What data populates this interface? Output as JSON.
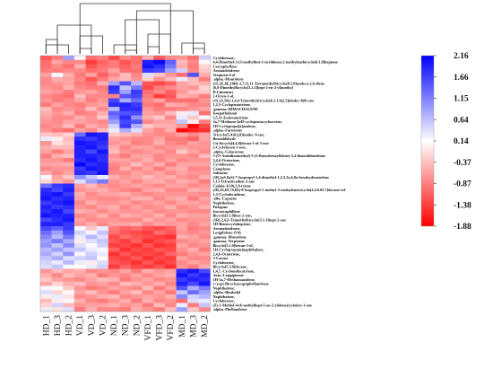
{
  "chart_data": {
    "type": "heatmap",
    "title": "",
    "xlabel": "",
    "ylabel": "",
    "columns": [
      "HD_1",
      "HD_3",
      "HD_2",
      "VD_1",
      "VD_3",
      "VD_2",
      "ND_1",
      "ND_3",
      "ND_2",
      "VFD_1",
      "VFD_3",
      "VFD_2",
      "MD_1",
      "MD_3",
      "MD_2"
    ],
    "rows": [
      "Cyclohexane,",
      "4,4-Dimethyl-3-(3-methylbut-3-enylidene)-2-methylenebicyclo[4.1.0]heptane",
      "Caryophyllene",
      "Aromadendrene",
      "Terpinen-4-ol",
      ".alpha.-Muurolene",
      "(1S,2E,6E,10R)-3,7,11,11-Tetramethylbicyclo[8.1.0]undeca-2,6-diene",
      "(6,6-Dimethylbicyclo[3.1.1]hept-2-en-2-yl)methyl",
      "D-Limonene",
      "2-Octen-1-ol,",
      "(1S,2S,5R)-1,4,4-Trimethyltricyclo[6.3.1.0(2,5)]dodec-8(9)-ene",
      "1,2,5-Cyclopentatriene,",
      ".gamma.-HIMACHALENE",
      "Isospathulenol",
      "3,5,11-Eudesmatriene",
      "3a,7-Methano-3aH-cyclopentacyclooctene,",
      "1H-Cyclopropa[a]azulene,",
      ".alpha.-Farnesene",
      "Tricyclo[5.4.0(2,8)]undec-9-ene,",
      "Benzaldehyde",
      "Cis-bicyclo[4.4.0]decan-1-ol-3-one",
      "2-Cyclohexen-1-one,",
      ".alpha.-Calacorene",
      "3-(O-Anisidinomethyl)-5-(3-fluorobenzylidene)-2,4-thiazolidinedione",
      "2,4,6-Octatriene,",
      "Cyclohexane,",
      "Camphene",
      "Sabinene",
      "(1R,2aS,8aS)-7-Isopropyl-1,4-dimethyl-1,2,3,3a,6,8a-hexahydroazulene",
      "1,13-Tetradecadien-3-one",
      "Cadala-1(10),3,8-triene",
      "(1R,2S,6S,7S,8S)-8-Isopropyl-1-methyl-3-methylenetricyclo[4.4.0.02.7]decane-rel-",
      "1,3-Cyclodecadiene,",
      ".alfa.-Copaene",
      "Naphthalene,",
      "Pulegone",
      "Isocaryophillene",
      "Bicyclo[3.1.0]hex-2-ene,",
      "(1R)-2,6,6-Trimethylbicyclo[3.1.1]hept-2-ene",
      "1H-Benzocycloheptene,",
      "Aromadendrene,",
      "Longifolene-(V4)",
      ".gamma.-Muurolene",
      ".gamma.-Terpinene",
      "Bicyclo[3.1.0]hexan-3-ol,",
      "1H-Cyclopropa[a]naphthalene,",
      "2,4,6-Octatriene,",
      "3-Carene",
      "Cyclohexene,",
      "Bicyclo[5.3.0]decane,",
      "1,4,7,-Cycloundecatriene,",
      ".beta.-Longipinene",
      "1H-3a,7-Methanoazulene,",
      "(+)-epi-Bicyclosesquiphellandrene",
      "Naphthalene,",
      ".alpha.-Bisabolol",
      "Naphthalene,",
      "Cyclohexene,",
      "(Z)-1-Methyl-4-(6-methylhept-5-en-2-ylidene)cyclohex-1-ene",
      ".alpha.-Phellandrene"
    ],
    "values": [
      [
        -1.2,
        -0.9,
        0.9,
        0.1,
        -1.0,
        -0.9,
        -1.3,
        -0.8,
        -1.0,
        -0.5,
        -1.2,
        -0.8,
        -0.7,
        -1.0,
        0.5
      ],
      [
        -1.0,
        -0.6,
        -0.8,
        -0.8,
        -1.4,
        -1.1,
        -0.9,
        -1.2,
        -1.0,
        1.9,
        2.1,
        1.4,
        -0.4,
        -0.8,
        0.1
      ],
      [
        -1.0,
        -0.8,
        -1.0,
        -0.5,
        -1.2,
        -1.0,
        -0.9,
        -1.1,
        -0.9,
        2.0,
        1.8,
        1.2,
        -0.5,
        -0.9,
        -0.2
      ],
      [
        -0.9,
        -0.9,
        -0.8,
        -0.8,
        -1.0,
        -0.9,
        -0.6,
        -1.0,
        -1.0,
        1.7,
        1.6,
        0.9,
        0.5,
        -0.8,
        -0.3
      ],
      [
        -0.6,
        0.2,
        -0.5,
        -0.9,
        -0.6,
        -1.1,
        -0.8,
        -0.4,
        -0.8,
        0.4,
        -0.3,
        -0.7,
        -1.0,
        1.5,
        -0.5
      ],
      [
        -0.8,
        -0.5,
        -0.6,
        -0.8,
        -1.2,
        -0.9,
        -0.6,
        -0.4,
        -0.7,
        -0.2,
        -0.7,
        -0.4,
        0.3,
        -0.4,
        -0.9
      ],
      [
        -0.8,
        -0.7,
        -0.6,
        -0.9,
        -1.0,
        -0.5,
        0.9,
        1.5,
        0.7,
        -1.2,
        -1.3,
        -1.1,
        -0.6,
        -0.4,
        -0.5
      ],
      [
        -0.7,
        -0.8,
        -0.5,
        -0.8,
        -0.9,
        -0.9,
        1.8,
        0.6,
        1.2,
        -1.3,
        -0.9,
        -0.8,
        -0.6,
        -0.7,
        -0.2
      ],
      [
        -0.6,
        -0.7,
        -0.9,
        -0.7,
        -0.6,
        -0.8,
        1.7,
        0.9,
        1.7,
        -1.0,
        -0.8,
        -1.1,
        -0.7,
        -0.4,
        -0.3
      ],
      [
        -0.8,
        -0.9,
        -1.0,
        -0.4,
        -0.8,
        -0.8,
        -0.8,
        1.5,
        1.6,
        -0.9,
        -1.4,
        -1.2,
        -0.5,
        -0.6,
        -0.9
      ],
      [
        -0.7,
        -0.9,
        -0.8,
        -0.6,
        -0.9,
        -0.7,
        1.6,
        0.8,
        1.3,
        -0.8,
        -0.6,
        -1.0,
        -1.0,
        -1.0,
        -0.7
      ],
      [
        -0.9,
        -0.6,
        -0.8,
        -0.9,
        -0.7,
        -0.6,
        1.8,
        1.9,
        1.7,
        -0.9,
        -1.0,
        -0.5,
        -0.6,
        -0.8,
        -0.8
      ],
      [
        -0.4,
        -0.8,
        -0.7,
        -0.8,
        -0.4,
        -0.8,
        0.7,
        1.8,
        1.8,
        -0.7,
        -0.9,
        -0.9,
        -0.8,
        -0.7,
        -0.6
      ],
      [
        -0.5,
        -0.7,
        -0.5,
        -0.9,
        -0.8,
        -0.5,
        1.4,
        1.5,
        1.6,
        -0.6,
        -0.7,
        -0.4,
        0.0,
        0.3,
        -1.0
      ],
      [
        -0.6,
        -0.8,
        -0.8,
        -0.5,
        -0.7,
        -0.3,
        1.2,
        1.8,
        1.0,
        -0.5,
        -0.3,
        -0.8,
        0.3,
        -0.3,
        0.2
      ],
      [
        -0.7,
        -0.8,
        -0.6,
        -0.6,
        -0.7,
        -0.8,
        0.9,
        1.6,
        1.5,
        -0.8,
        -0.6,
        -0.6,
        0.6,
        0.0,
        -0.9
      ],
      [
        -0.8,
        -0.7,
        -0.4,
        -0.9,
        -0.5,
        -0.7,
        0.5,
        1.7,
        0.8,
        -0.3,
        -0.5,
        -0.5,
        -0.7,
        -1.8,
        -1.3
      ],
      [
        -0.7,
        -0.9,
        -1.0,
        -0.6,
        -0.8,
        -0.4,
        0.3,
        0.8,
        0.4,
        -0.6,
        -0.8,
        -0.5,
        -1.8,
        -1.6,
        -1.5
      ],
      [
        -0.3,
        -0.4,
        -0.2,
        1.3,
        2.0,
        1.9,
        -0.3,
        -0.4,
        -0.5,
        -0.7,
        -0.8,
        -0.8,
        -0.6,
        -0.8,
        -0.6
      ],
      [
        0.3,
        0.0,
        -0.4,
        1.8,
        1.7,
        1.9,
        -0.6,
        -0.7,
        -0.8,
        -0.8,
        -0.6,
        -0.9,
        -0.9,
        -1.1,
        -0.6
      ],
      [
        -0.7,
        -0.1,
        -0.3,
        2.0,
        1.9,
        1.8,
        -0.7,
        -0.6,
        -0.9,
        -0.8,
        -0.5,
        -0.8,
        -0.9,
        -0.6,
        -0.7
      ],
      [
        -0.5,
        -0.4,
        -0.4,
        1.9,
        2.0,
        1.7,
        -0.5,
        -0.8,
        -0.6,
        -0.6,
        -0.8,
        -0.7,
        -0.6,
        -0.7,
        -0.7
      ],
      [
        -0.6,
        -0.9,
        -0.6,
        1.9,
        1.6,
        2.0,
        -0.4,
        -0.7,
        -0.8,
        -0.7,
        -0.6,
        -0.8,
        -0.3,
        -0.6,
        -0.8
      ],
      [
        -0.9,
        -0.5,
        -0.4,
        1.9,
        1.9,
        1.8,
        -0.7,
        -0.9,
        -0.6,
        -0.6,
        -0.8,
        -0.7,
        -0.7,
        -0.8,
        -0.4
      ],
      [
        -0.7,
        -0.7,
        -0.9,
        1.8,
        2.0,
        1.8,
        -0.6,
        -0.6,
        -0.7,
        -0.5,
        -0.8,
        -0.6,
        -0.8,
        -0.7,
        -0.7
      ],
      [
        -0.6,
        -0.6,
        -0.5,
        2.1,
        1.8,
        1.9,
        -0.8,
        -0.7,
        -0.4,
        -0.7,
        -0.5,
        -0.9,
        -0.6,
        -0.6,
        -0.6
      ],
      [
        -0.8,
        -0.7,
        -0.7,
        1.7,
        2.0,
        1.9,
        -0.9,
        -0.5,
        -0.8,
        -0.6,
        -0.9,
        -0.6,
        -0.5,
        -0.8,
        -0.8
      ],
      [
        -0.5,
        -0.8,
        -0.6,
        1.8,
        1.7,
        2.0,
        -0.8,
        -0.8,
        -0.6,
        -0.7,
        -0.6,
        -0.8,
        -0.6,
        -0.7,
        -0.7
      ],
      [
        0.2,
        -0.6,
        -0.3,
        1.0,
        0.6,
        0.3,
        -0.5,
        -0.7,
        -0.6,
        -0.4,
        -0.6,
        -0.5,
        -0.7,
        -0.8,
        -0.5
      ],
      [
        -0.2,
        -0.5,
        -0.7,
        0.4,
        0.9,
        1.2,
        -0.7,
        -0.6,
        -0.8,
        -0.6,
        -0.5,
        -0.7,
        -0.5,
        -0.6,
        -0.9
      ],
      [
        1.3,
        1.7,
        1.8,
        -0.6,
        -0.4,
        -0.7,
        -0.8,
        -0.7,
        -0.6,
        -0.7,
        -0.8,
        -0.6,
        -0.6,
        -0.8,
        -0.7
      ],
      [
        1.8,
        1.6,
        1.9,
        -0.7,
        -0.6,
        -0.5,
        -0.7,
        -0.8,
        -0.9,
        -0.6,
        -0.5,
        -0.8,
        -0.8,
        -0.5,
        -0.6
      ],
      [
        1.9,
        2.0,
        1.7,
        -0.5,
        -0.8,
        -0.6,
        -0.6,
        -0.5,
        -0.7,
        -0.8,
        -0.7,
        -0.7,
        -0.7,
        -0.7,
        -0.8
      ],
      [
        2.0,
        1.8,
        1.9,
        -0.6,
        -0.7,
        -0.8,
        -0.8,
        -0.7,
        -0.5,
        -0.5,
        -0.8,
        -0.6,
        -0.5,
        -0.9,
        -0.6
      ],
      [
        1.7,
        1.9,
        2.0,
        -0.8,
        -0.5,
        -0.7,
        -0.7,
        -0.6,
        -0.8,
        -0.7,
        -0.6,
        -0.8,
        -0.6,
        -0.6,
        -0.7
      ],
      [
        1.9,
        1.7,
        1.8,
        -0.7,
        -0.8,
        -0.6,
        -0.5,
        -0.8,
        -0.6,
        -0.8,
        -0.7,
        -0.5,
        -0.8,
        -0.7,
        -0.5
      ],
      [
        1.8,
        2.0,
        1.6,
        -0.5,
        -0.6,
        -0.8,
        -0.6,
        -0.7,
        -0.7,
        -0.6,
        -0.8,
        -0.7,
        -0.7,
        -0.8,
        -0.8
      ],
      [
        2.0,
        1.9,
        1.9,
        -0.8,
        -0.7,
        -0.5,
        -0.8,
        -0.5,
        -0.6,
        -0.7,
        -0.5,
        -0.8,
        -0.5,
        -0.6,
        -0.6
      ],
      [
        1.6,
        1.8,
        2.0,
        -0.6,
        -0.8,
        -0.7,
        -0.7,
        -0.8,
        -0.8,
        -0.5,
        -0.7,
        -0.6,
        -0.8,
        -0.7,
        -0.7
      ],
      [
        1.9,
        1.9,
        1.7,
        -0.7,
        -0.5,
        -0.8,
        -0.6,
        -0.6,
        -0.5,
        -0.8,
        -0.6,
        -0.7,
        -0.6,
        -0.8,
        -0.6
      ],
      [
        1.6,
        1.4,
        1.7,
        0.2,
        -0.3,
        0.3,
        -0.9,
        -1.1,
        -1.0,
        -1.2,
        -1.3,
        -1.1,
        -0.6,
        -0.9,
        -0.8
      ],
      [
        1.3,
        0.9,
        1.5,
        0.5,
        0.2,
        0.6,
        -1.0,
        -1.2,
        -1.3,
        -1.4,
        -1.0,
        -1.2,
        -0.7,
        -0.8,
        -0.7
      ],
      [
        1.1,
        0.7,
        1.2,
        0.3,
        0.7,
        0.4,
        -1.3,
        -1.0,
        -1.2,
        -1.3,
        -1.4,
        -1.5,
        -0.5,
        -0.6,
        -0.8
      ],
      [
        0.9,
        1.2,
        0.8,
        0.0,
        0.4,
        0.6,
        -1.2,
        -1.4,
        -1.1,
        -1.5,
        -1.3,
        -1.2,
        -0.8,
        -0.7,
        -0.6
      ],
      [
        1.0,
        0.6,
        1.1,
        0.4,
        0.1,
        0.5,
        -1.4,
        -1.3,
        -1.5,
        -1.2,
        -1.5,
        -1.4,
        -0.6,
        -0.8,
        -0.7
      ],
      [
        0.7,
        0.9,
        0.6,
        0.6,
        0.3,
        0.2,
        -1.1,
        -1.5,
        -1.3,
        -1.4,
        -1.2,
        -1.3,
        -0.7,
        -0.5,
        -0.9
      ],
      [
        0.8,
        0.5,
        1.0,
        0.2,
        0.5,
        0.3,
        -1.5,
        -1.2,
        -1.4,
        -1.3,
        -1.4,
        -1.1,
        -0.9,
        -0.7,
        -0.6
      ],
      [
        0.6,
        0.8,
        0.4,
        0.5,
        0.6,
        0.1,
        -1.3,
        -1.4,
        -1.2,
        -1.5,
        -1.3,
        -1.4,
        -0.6,
        -0.8,
        -0.8
      ],
      [
        0.5,
        0.3,
        0.7,
        0.3,
        0.0,
        0.4,
        -1.2,
        -1.3,
        -1.5,
        -1.2,
        -1.5,
        -1.3,
        -0.8,
        -0.6,
        -0.7
      ],
      [
        0.4,
        0.6,
        0.2,
        0.1,
        0.3,
        0.5,
        -1.4,
        -1.1,
        -1.3,
        -1.4,
        -1.2,
        -1.5,
        -0.7,
        -0.9,
        -0.5
      ],
      [
        -0.7,
        -0.4,
        -0.6,
        -0.5,
        -0.8,
        -0.7,
        -0.8,
        -0.6,
        -0.9,
        -0.5,
        -0.7,
        -0.6,
        1.8,
        2.0,
        1.6
      ],
      [
        -0.5,
        -0.8,
        -0.4,
        -0.6,
        -0.5,
        -0.9,
        -0.7,
        -0.8,
        -0.6,
        -0.8,
        -0.6,
        -0.5,
        2.0,
        1.7,
        1.9
      ],
      [
        -0.3,
        -0.6,
        -0.7,
        -0.8,
        -0.6,
        -0.4,
        -0.5,
        -0.9,
        -0.7,
        -0.6,
        -0.8,
        -0.7,
        1.7,
        1.9,
        1.8
      ],
      [
        -0.6,
        -0.2,
        -0.5,
        -0.4,
        -0.7,
        -0.6,
        -0.8,
        -0.4,
        -0.5,
        -0.7,
        -0.5,
        -0.8,
        1.9,
        1.6,
        2.0
      ],
      [
        0.2,
        0.1,
        -0.3,
        -0.7,
        -0.9,
        -0.8,
        -0.6,
        -0.7,
        -0.8,
        -0.4,
        -0.9,
        -0.6,
        1.5,
        0.8,
        1.2
      ],
      [
        0.4,
        -0.2,
        0.1,
        -0.6,
        -0.4,
        -0.7,
        -0.9,
        -0.6,
        -0.4,
        -0.8,
        -0.6,
        -0.9,
        0.6,
        1.3,
        0.9
      ],
      [
        0.0,
        0.3,
        -0.1,
        -0.8,
        -0.7,
        -0.5,
        -0.4,
        -0.8,
        -0.7,
        -0.6,
        -0.7,
        -0.5,
        1.1,
        0.5,
        0.7
      ],
      [
        -0.4,
        0.0,
        0.2,
        -0.5,
        -0.8,
        -0.9,
        -0.7,
        -0.5,
        -0.9,
        -0.5,
        -0.8,
        -0.7,
        -1.0,
        0.4,
        0.3
      ],
      [
        -0.2,
        0.5,
        -0.4,
        -0.7,
        -0.6,
        -0.6,
        -0.5,
        -0.7,
        -0.6,
        -0.9,
        -0.4,
        -0.8,
        0.3,
        -0.9,
        0.6
      ],
      [
        0.3,
        -0.1,
        0.4,
        -0.9,
        -0.5,
        -0.8,
        -0.8,
        -0.9,
        -0.5,
        -0.7,
        -0.9,
        -0.4,
        0.9,
        -0.3,
        -0.8
      ]
    ],
    "legend": {
      "ticks": [
        "2.16",
        "1.66",
        "1.15",
        "0.64",
        "0.14",
        "-0.37",
        "-0.87",
        "-1.38",
        "-1.88"
      ],
      "min": -1.88,
      "max": 2.16,
      "placement": "right",
      "colors": {
        "high": "#0000ff",
        "mid": "#ffffff",
        "low": "#ff0000"
      }
    },
    "dendrogram": {
      "placement": "top",
      "color": "#333333"
    }
  }
}
